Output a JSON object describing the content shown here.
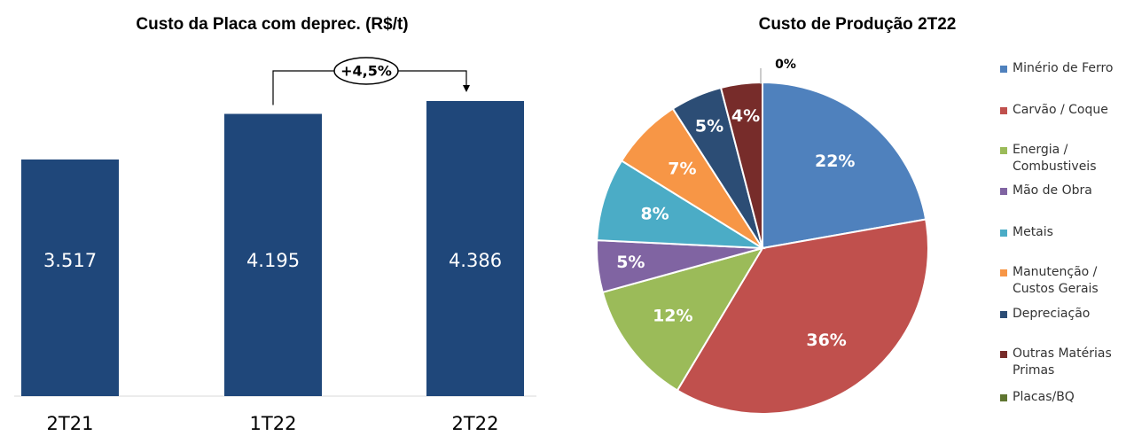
{
  "chart_data": [
    {
      "type": "bar",
      "title": "Custo da Placa com deprec. (R$/t)",
      "categories": [
        "2T21",
        "1T22",
        "2T22"
      ],
      "values": [
        3517,
        4195,
        4386
      ],
      "value_labels": [
        "3.517",
        "4.195",
        "4.386"
      ],
      "color": "#1f477a",
      "annotation": "+4,5%"
    },
    {
      "type": "pie",
      "title": "Custo de Produção 2T22",
      "categories": [
        "Minério de Ferro",
        "Carvão / Coque",
        "Energia / Combustiveis",
        "Mão de Obra",
        "Metais",
        "Manutenção / Custos Gerais",
        "Depreciação",
        "Outras Matérias Primas",
        "Placas/BQ"
      ],
      "values": [
        22,
        36,
        12,
        5,
        8,
        7,
        5,
        4,
        0
      ],
      "value_labels": [
        "22%",
        "36%",
        "12%",
        "5%",
        "8%",
        "7%",
        "5%",
        "4%",
        "0%"
      ],
      "colors": [
        "#4f81bd",
        "#c0504d",
        "#9bbb59",
        "#8064a2",
        "#4bacc6",
        "#f79646",
        "#2c4d75",
        "#772c2a",
        "#5f7530"
      ],
      "legend": "right"
    }
  ]
}
